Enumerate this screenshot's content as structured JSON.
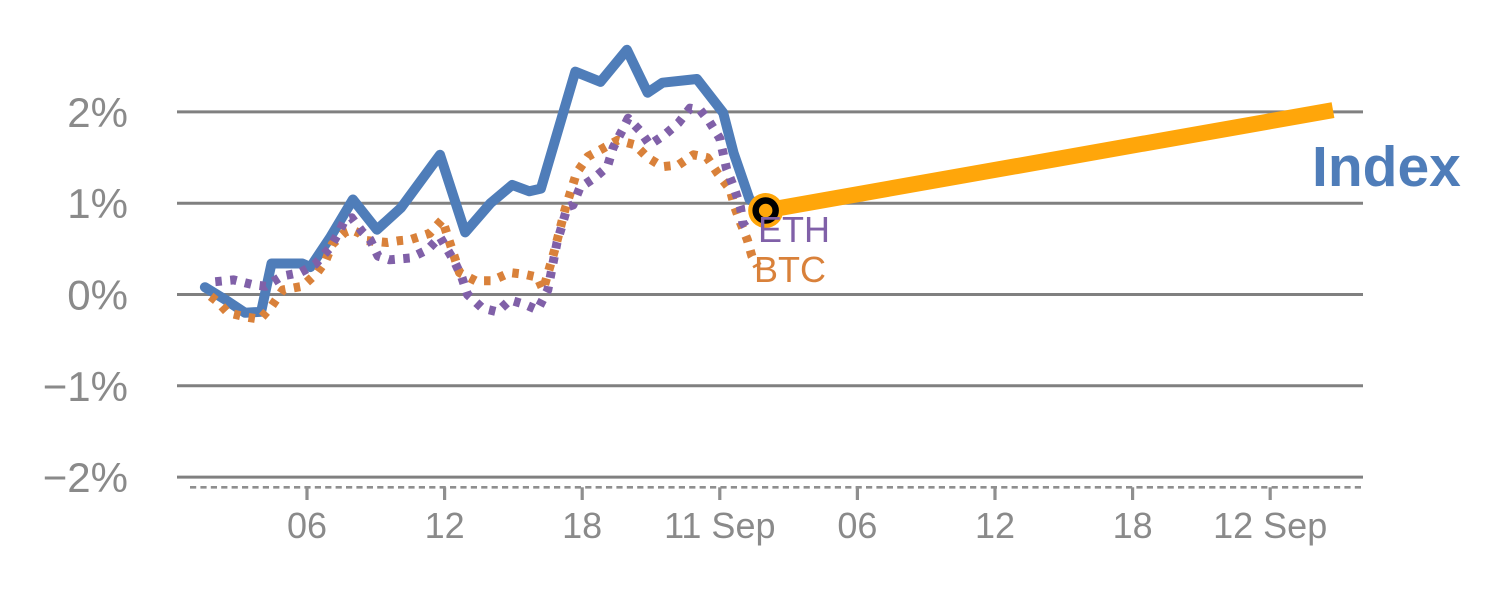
{
  "chart_data": {
    "type": "line",
    "title": "",
    "x_unit": "hours since 10 Sep 00:00",
    "y_unit": "percent change",
    "x_range": [
      0.3,
      52.1
    ],
    "y_range": [
      -2.4,
      2.9
    ],
    "grid": "horizontal-gray-lines",
    "legend_position": "inline-end-of-line-labels",
    "y_ticks": [
      {
        "value": 2,
        "label": "2%"
      },
      {
        "value": 1,
        "label": "1%"
      },
      {
        "value": 0,
        "label": "0%"
      },
      {
        "value": -1,
        "label": "−1%"
      },
      {
        "value": -2,
        "label": "−2%"
      }
    ],
    "x_ticks": [
      {
        "t": 6,
        "label": "06"
      },
      {
        "t": 12,
        "label": "12"
      },
      {
        "t": 18,
        "label": "18"
      },
      {
        "t": 24,
        "label": "11 Sep"
      },
      {
        "t": 30,
        "label": "06"
      },
      {
        "t": 36,
        "label": "12"
      },
      {
        "t": 42,
        "label": "18"
      },
      {
        "t": 48,
        "label": "12 Sep"
      }
    ],
    "series": [
      {
        "name": "index",
        "label": "Index",
        "style": "solid-thick",
        "color": "#4f7db9",
        "points": [
          [
            1.55,
            0.08
          ],
          [
            2.4,
            -0.05
          ],
          [
            3.3,
            -0.2
          ],
          [
            4.0,
            -0.19
          ],
          [
            4.45,
            0.34
          ],
          [
            5.8,
            0.34
          ],
          [
            6.15,
            0.3
          ],
          [
            7.0,
            0.62
          ],
          [
            8.0,
            1.04
          ],
          [
            9.05,
            0.71
          ],
          [
            10.1,
            0.95
          ],
          [
            11.8,
            1.53
          ],
          [
            12.9,
            0.68
          ],
          [
            14.0,
            1.0
          ],
          [
            14.95,
            1.2
          ],
          [
            15.7,
            1.13
          ],
          [
            16.2,
            1.16
          ],
          [
            17.7,
            2.44
          ],
          [
            18.8,
            2.33
          ],
          [
            19.95,
            2.68
          ],
          [
            20.85,
            2.21
          ],
          [
            21.5,
            2.32
          ],
          [
            23.0,
            2.36
          ],
          [
            24.15,
            1.99
          ],
          [
            24.6,
            1.55
          ],
          [
            25.3,
            1.04
          ],
          [
            26.0,
            0.92
          ]
        ]
      },
      {
        "name": "eth",
        "label": "ETH",
        "style": "dotted",
        "color": "#8060a8",
        "points": [
          [
            2.0,
            0.14
          ],
          [
            2.8,
            0.16
          ],
          [
            3.6,
            0.11
          ],
          [
            4.2,
            0.09
          ],
          [
            4.9,
            0.2
          ],
          [
            5.7,
            0.24
          ],
          [
            6.35,
            0.33
          ],
          [
            7.0,
            0.51
          ],
          [
            7.45,
            0.71
          ],
          [
            7.65,
            0.82
          ],
          [
            7.95,
            0.84
          ],
          [
            8.4,
            0.69
          ],
          [
            8.75,
            0.6
          ],
          [
            9.1,
            0.42
          ],
          [
            9.6,
            0.38
          ],
          [
            10.5,
            0.4
          ],
          [
            11.25,
            0.49
          ],
          [
            11.8,
            0.63
          ],
          [
            12.45,
            0.35
          ],
          [
            12.75,
            0.19
          ],
          [
            13.0,
            0.0
          ],
          [
            13.65,
            -0.15
          ],
          [
            14.3,
            -0.19
          ],
          [
            14.85,
            -0.06
          ],
          [
            15.5,
            -0.11
          ],
          [
            16.05,
            -0.17
          ],
          [
            16.5,
            0.05
          ],
          [
            16.9,
            0.57
          ],
          [
            17.1,
            0.74
          ],
          [
            17.35,
            0.96
          ],
          [
            17.6,
            0.98
          ],
          [
            17.9,
            1.17
          ],
          [
            18.55,
            1.28
          ],
          [
            19.1,
            1.4
          ],
          [
            19.35,
            1.61
          ],
          [
            19.75,
            1.8
          ],
          [
            20.0,
            1.93
          ],
          [
            20.5,
            1.8
          ],
          [
            20.95,
            1.64
          ],
          [
            21.6,
            1.75
          ],
          [
            22.2,
            1.88
          ],
          [
            22.7,
            2.04
          ],
          [
            23.15,
            2.02
          ],
          [
            23.55,
            1.89
          ],
          [
            24.0,
            1.71
          ],
          [
            24.3,
            1.37
          ],
          [
            24.65,
            1.15
          ],
          [
            24.9,
            0.96
          ],
          [
            25.0,
            0.79
          ],
          [
            25.15,
            0.73
          ]
        ]
      },
      {
        "name": "btc",
        "label": "BTC",
        "style": "dotted",
        "color": "#d9813a",
        "points": [
          [
            1.8,
            -0.02
          ],
          [
            2.1,
            -0.08
          ],
          [
            2.55,
            -0.2
          ],
          [
            3.4,
            -0.25
          ],
          [
            3.95,
            -0.27
          ],
          [
            4.45,
            -0.13
          ],
          [
            4.95,
            0.05
          ],
          [
            5.8,
            0.09
          ],
          [
            6.45,
            0.24
          ],
          [
            6.8,
            0.36
          ],
          [
            7.1,
            0.55
          ],
          [
            7.65,
            0.68
          ],
          [
            7.95,
            0.71
          ],
          [
            8.3,
            0.67
          ],
          [
            8.6,
            0.59
          ],
          [
            9.5,
            0.57
          ],
          [
            10.05,
            0.59
          ],
          [
            10.5,
            0.6
          ],
          [
            11.35,
            0.67
          ],
          [
            11.9,
            0.82
          ],
          [
            12.65,
            0.24
          ],
          [
            13.35,
            0.15
          ],
          [
            14.05,
            0.15
          ],
          [
            14.85,
            0.24
          ],
          [
            15.5,
            0.22
          ],
          [
            16.05,
            0.19
          ],
          [
            16.3,
            0.05
          ],
          [
            16.8,
            0.49
          ],
          [
            17.25,
            0.93
          ],
          [
            17.75,
            1.33
          ],
          [
            18.25,
            1.51
          ],
          [
            18.9,
            1.6
          ],
          [
            19.55,
            1.69
          ],
          [
            20.3,
            1.64
          ],
          [
            20.85,
            1.5
          ],
          [
            21.5,
            1.4
          ],
          [
            22.2,
            1.42
          ],
          [
            22.85,
            1.53
          ],
          [
            23.45,
            1.5
          ],
          [
            23.9,
            1.33
          ],
          [
            24.45,
            1.15
          ],
          [
            24.65,
            0.96
          ],
          [
            24.9,
            0.79
          ],
          [
            25.2,
            0.6
          ],
          [
            25.4,
            0.42
          ],
          [
            25.65,
            0.31
          ]
        ]
      },
      {
        "name": "index-projection",
        "label": "",
        "style": "solid-extra-thick",
        "color": "#ffa60a",
        "points": [
          [
            26.0,
            0.92
          ],
          [
            50.74,
            2.02
          ]
        ]
      }
    ],
    "marker": {
      "name": "current-point",
      "t": 26.0,
      "value": 0.92,
      "fill": "#ffa60a",
      "ring": "#000000"
    }
  },
  "colors": {
    "index_blue": "#4f7db9",
    "eth_purple": "#8060a8",
    "btc_orange": "#d9813a",
    "projection_orange": "#ffa60a",
    "gridline_gray": "#808080",
    "axis_gray": "#8f8f8f",
    "label_gray": "#8a8a8a",
    "background": "#ffffff"
  }
}
